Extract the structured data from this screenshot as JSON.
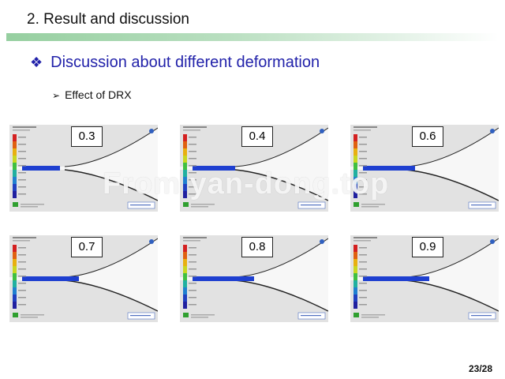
{
  "slide": {
    "title": "2. Result and discussion",
    "heading": "Discussion about different deformation",
    "heading_bullet": "diamond-bullet-icon",
    "subitem": "Effect of DRX",
    "subitem_bullet": "arrow-bullet-icon",
    "page": "23/28",
    "watermark": "From yan-dong.top",
    "accent_color": "#2222aa",
    "bar_color": "#96cfa0"
  },
  "panels": [
    {
      "label": "0.3",
      "deformation": 0.3
    },
    {
      "label": "0.4",
      "deformation": 0.4
    },
    {
      "label": "0.6",
      "deformation": 0.6
    },
    {
      "label": "0.7",
      "deformation": 0.7
    },
    {
      "label": "0.8",
      "deformation": 0.8
    },
    {
      "label": "0.9",
      "deformation": 0.9
    }
  ]
}
